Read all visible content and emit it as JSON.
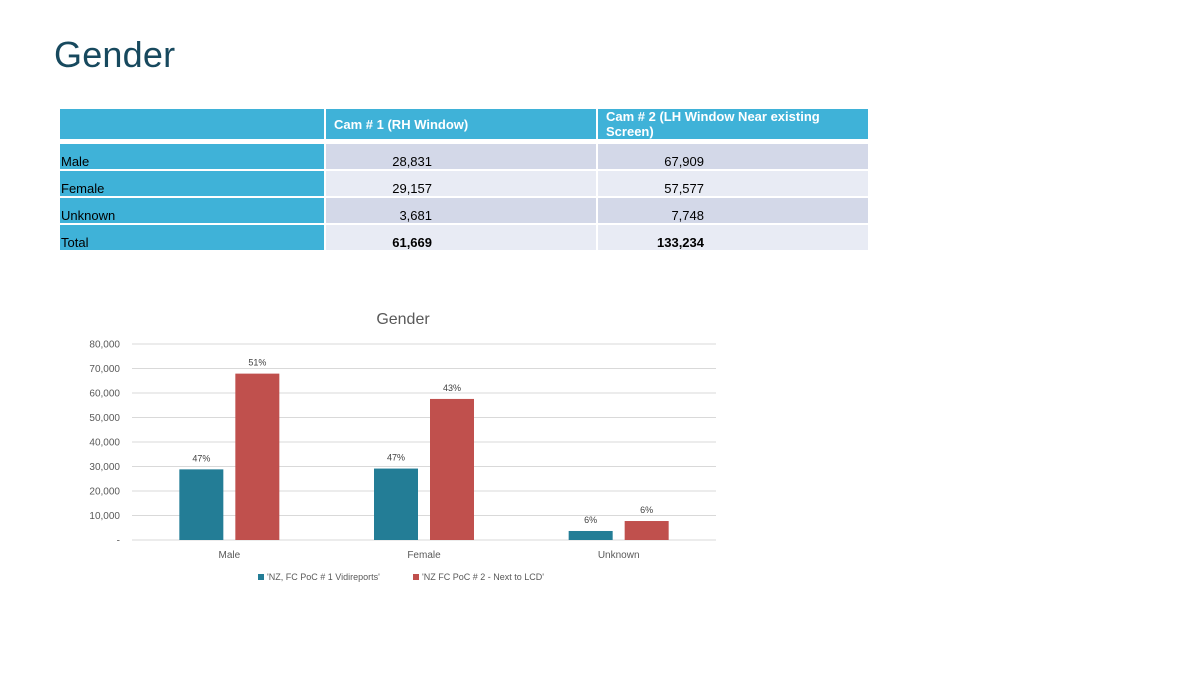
{
  "page": {
    "title": "Gender"
  },
  "table": {
    "headers": [
      "",
      "Cam # 1 (RH Window)",
      "Cam # 2 (LH Window Near existing Screen)"
    ],
    "rows": [
      {
        "label": "Male",
        "cam1": "28,831",
        "cam2": "67,909"
      },
      {
        "label": "Female",
        "cam1": "29,157",
        "cam2": "57,577"
      },
      {
        "label": "Unknown",
        "cam1": "3,681",
        "cam2": "7,748"
      },
      {
        "label": "Total",
        "cam1": "61,669",
        "cam2": "133,234"
      }
    ]
  },
  "colors": {
    "header_bg": "#3fb2d8",
    "series1": "#237d96",
    "series2": "#c0504d",
    "title": "#17495e"
  },
  "chart_data": {
    "type": "bar",
    "title": "Gender",
    "categories": [
      "Male",
      "Female",
      "Unknown"
    ],
    "series": [
      {
        "name": "'NZ, FC PoC # 1 Vidireports'",
        "values": [
          28831,
          29157,
          3681
        ],
        "labels": [
          "47%",
          "47%",
          "6%"
        ],
        "color": "#237d96"
      },
      {
        "name": "'NZ FC PoC # 2 - Next to LCD'",
        "values": [
          67909,
          57577,
          7748
        ],
        "labels": [
          "51%",
          "43%",
          "6%"
        ],
        "color": "#c0504d"
      }
    ],
    "ylim": [
      0,
      80000
    ],
    "yticks": [
      0,
      10000,
      20000,
      30000,
      40000,
      50000,
      60000,
      70000,
      80000
    ],
    "ytick_labels": [
      "-",
      "10,000",
      "20,000",
      "30,000",
      "40,000",
      "50,000",
      "60,000",
      "70,000",
      "80,000"
    ],
    "xlabel": "",
    "ylabel": "",
    "grid": true,
    "legend_position": "bottom"
  }
}
